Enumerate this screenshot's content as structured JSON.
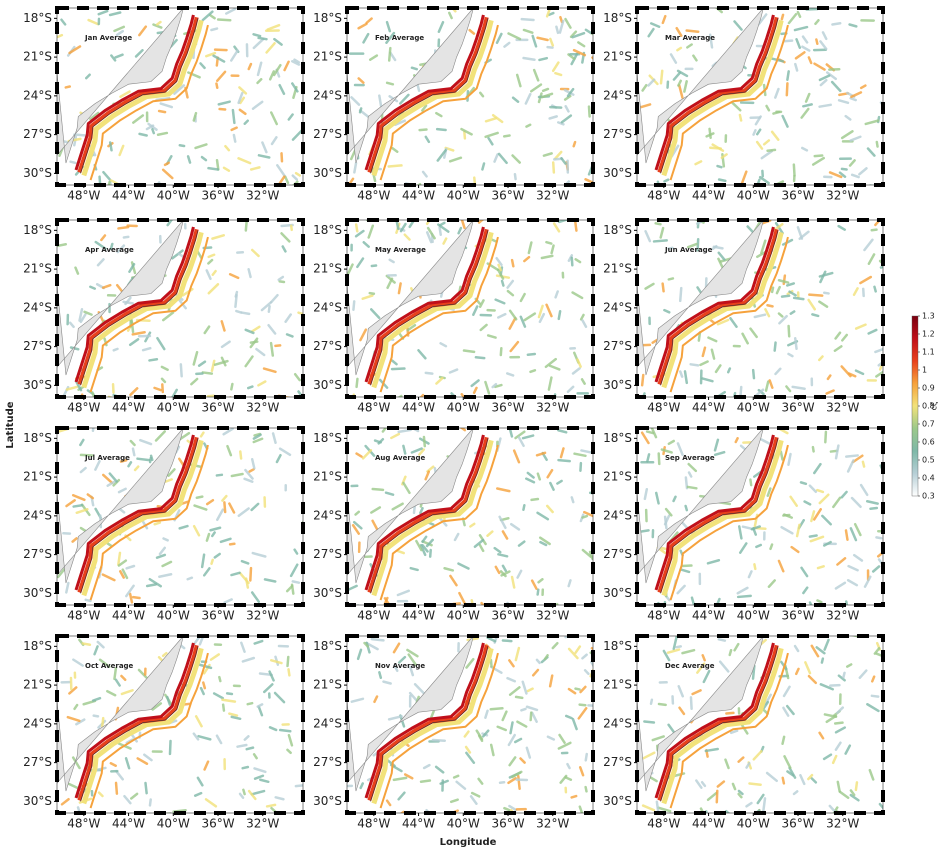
{
  "figure": {
    "xlabel": "Longitude",
    "ylabel": "Latitude",
    "lonlim": [
      -50.4,
      -28.4
    ],
    "latlim": [
      -30.9,
      -17.2
    ],
    "lon_ticks": [
      {
        "value": -48,
        "label": "48°W"
      },
      {
        "value": -44,
        "label": "44°W"
      },
      {
        "value": -40,
        "label": "40°W"
      },
      {
        "value": -36,
        "label": "36°W"
      },
      {
        "value": -32,
        "label": "32°W"
      }
    ],
    "lat_ticks": [
      {
        "value": -18,
        "label": "18°S"
      },
      {
        "value": -21,
        "label": "21°S"
      },
      {
        "value": -24,
        "label": "24°S"
      },
      {
        "value": -27,
        "label": "27°S"
      },
      {
        "value": -30,
        "label": "30°S"
      }
    ],
    "panels": [
      {
        "title": "Jan Average"
      },
      {
        "title": "Feb Average"
      },
      {
        "title": "Mar Average"
      },
      {
        "title": "Apr Average"
      },
      {
        "title": "May Average"
      },
      {
        "title": "Jun Average"
      },
      {
        "title": "Jul Average"
      },
      {
        "title": "Aug Average"
      },
      {
        "title": "Sep Average"
      },
      {
        "title": "Oct Average"
      },
      {
        "title": "Nov Average"
      },
      {
        "title": "Dec Average"
      }
    ],
    "colorbar": {
      "label": "cζ",
      "lim": [
        0.3,
        1.3
      ],
      "ticks": [
        0.3,
        0.4,
        0.5,
        0.6,
        0.7,
        0.8,
        0.9,
        1,
        1.1,
        1.2,
        1.3
      ],
      "colors": [
        "#ffffff",
        "#b7cfd6",
        "#7fb8a8",
        "#9cc98a",
        "#f2e27a",
        "#f6a23c",
        "#e8401c",
        "#c0101a",
        "#7a0010"
      ]
    }
  }
}
